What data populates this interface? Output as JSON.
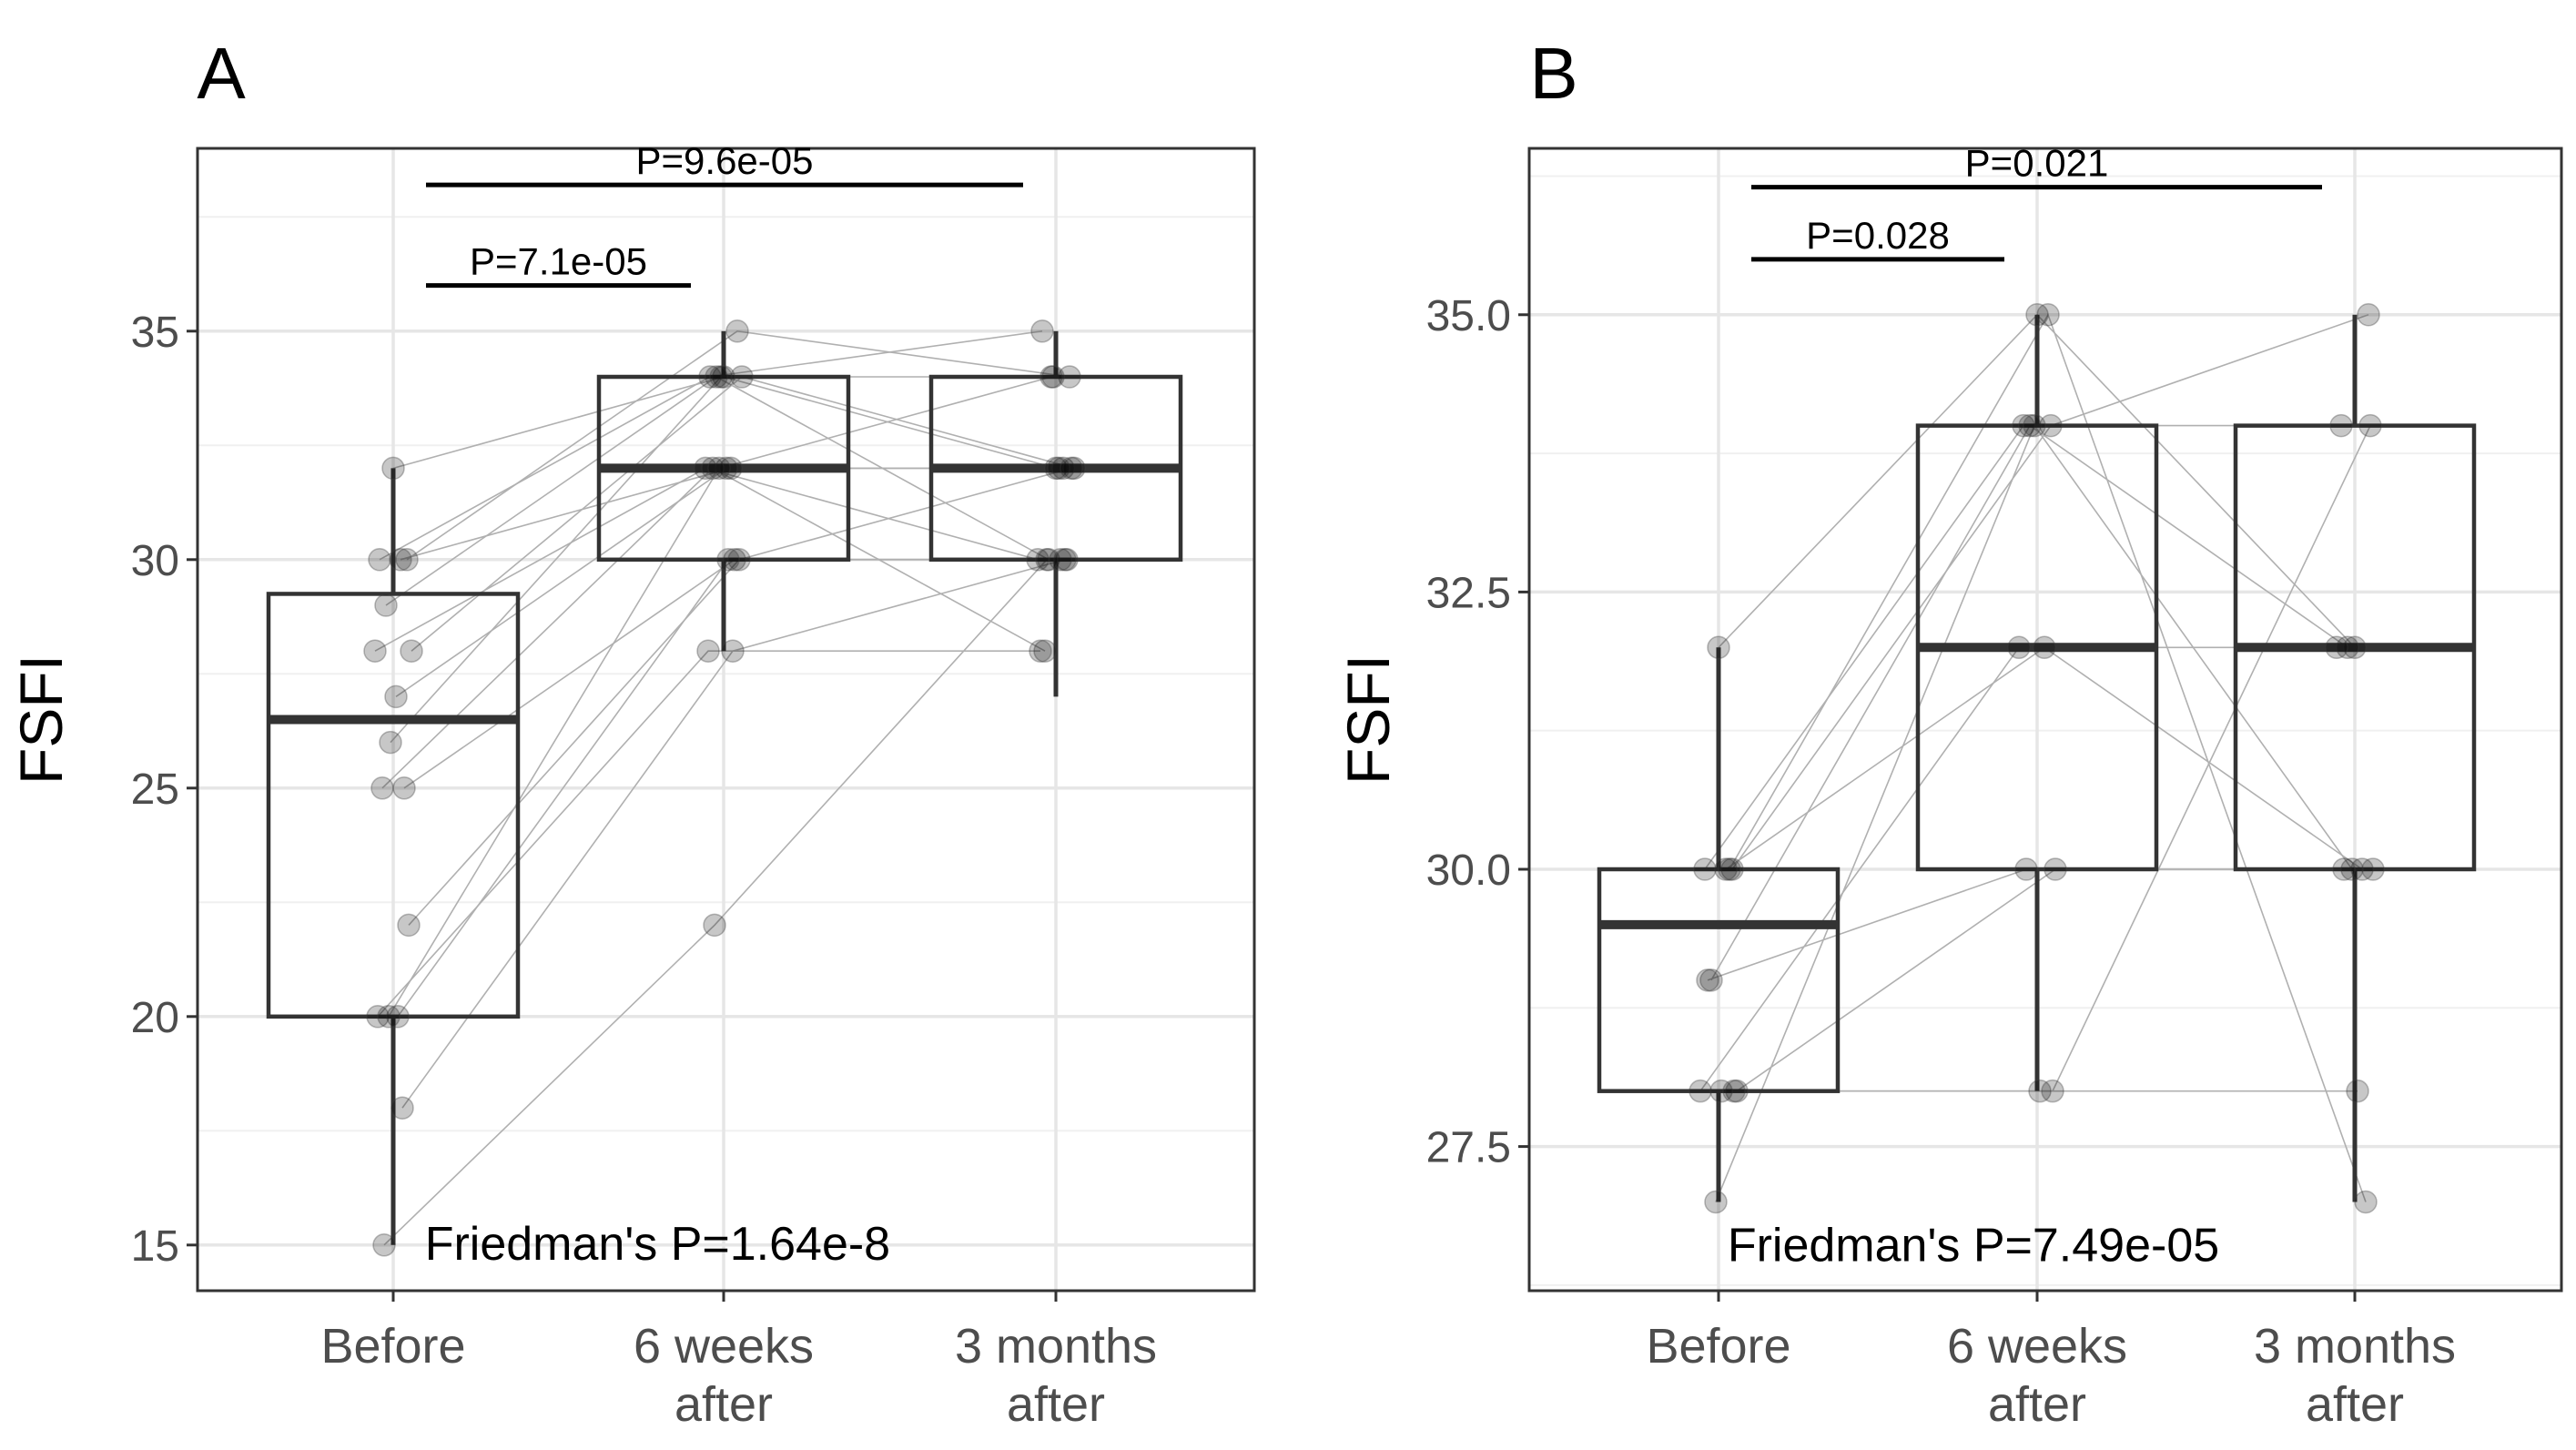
{
  "chart_data": [
    {
      "type": "boxplot",
      "panel_label": "A",
      "ylabel": "FSFI",
      "categories": [
        "Before",
        "6 weeks after",
        "3 months after"
      ],
      "category_lines": [
        [
          "Before"
        ],
        [
          "6 weeks",
          "after"
        ],
        [
          "3 months",
          "after"
        ]
      ],
      "ylim": [
        14,
        39
      ],
      "yticks": [
        15,
        20,
        25,
        30,
        35
      ],
      "ytick_labels": [
        "15",
        "20",
        "25",
        "30",
        "35"
      ],
      "grid": true,
      "boxes": [
        {
          "q1": 20,
          "median": 26.5,
          "q3": 29.25,
          "whisker_low": 15,
          "whisker_high": 32
        },
        {
          "q1": 30,
          "median": 32,
          "q3": 34,
          "whisker_low": 28,
          "whisker_high": 35
        },
        {
          "q1": 30,
          "median": 32,
          "q3": 34,
          "whisker_low": 27,
          "whisker_high": 35
        }
      ],
      "subjects": [
        [
          32,
          34,
          32
        ],
        [
          30,
          35,
          34
        ],
        [
          30,
          34,
          35
        ],
        [
          30,
          32,
          32
        ],
        [
          29,
          34,
          30
        ],
        [
          28,
          34,
          32
        ],
        [
          28,
          32,
          30
        ],
        [
          27,
          32,
          32
        ],
        [
          26,
          34,
          34
        ],
        [
          25,
          30,
          30
        ],
        [
          25,
          32,
          28
        ],
        [
          22,
          30,
          32
        ],
        [
          20,
          28,
          28
        ],
        [
          20,
          30,
          30
        ],
        [
          20,
          32,
          34
        ],
        [
          18,
          28,
          30
        ],
        [
          15,
          22,
          30
        ]
      ],
      "brackets": [
        {
          "from": 0,
          "to": 2,
          "y": 38.2,
          "label": "P=9.6e-05"
        },
        {
          "from": 0,
          "to": 1,
          "y": 36.0,
          "label": "P=7.1e-05"
        }
      ],
      "annotation": "Friedman's  P=1.64e-8",
      "annotation_y": 15
    },
    {
      "type": "boxplot",
      "panel_label": "B",
      "ylabel": "FSFI",
      "categories": [
        "Before",
        "6 weeks after",
        "3 months after"
      ],
      "category_lines": [
        [
          "Before"
        ],
        [
          "6 weeks",
          "after"
        ],
        [
          "3 months",
          "after"
        ]
      ],
      "ylim": [
        26.2,
        36.5
      ],
      "yticks": [
        27.5,
        30.0,
        32.5,
        35.0
      ],
      "ytick_labels": [
        "27.5",
        "30.0",
        "32.5",
        "35.0"
      ],
      "grid": true,
      "boxes": [
        {
          "q1": 28,
          "median": 29.5,
          "q3": 30,
          "whisker_low": 27,
          "whisker_high": 32
        },
        {
          "q1": 30,
          "median": 32,
          "q3": 34,
          "whisker_low": 28,
          "whisker_high": 35
        },
        {
          "q1": 30,
          "median": 32,
          "q3": 34,
          "whisker_low": 27,
          "whisker_high": 35
        }
      ],
      "subjects": [
        [
          32,
          35,
          32
        ],
        [
          30,
          34,
          35
        ],
        [
          30,
          34,
          34
        ],
        [
          30,
          32,
          30
        ],
        [
          29,
          34,
          32
        ],
        [
          28,
          30,
          30
        ],
        [
          28,
          32,
          32
        ],
        [
          28,
          28,
          28
        ],
        [
          27,
          34,
          30
        ],
        [
          30,
          35,
          27
        ],
        [
          29,
          30,
          30
        ],
        [
          28,
          28,
          34
        ]
      ],
      "brackets": [
        {
          "from": 0,
          "to": 2,
          "y": 36.15,
          "label": "P=0.021"
        },
        {
          "from": 0,
          "to": 1,
          "y": 35.5,
          "label": "P=0.028"
        }
      ],
      "annotation": "Friedman's  P=7.49e-05",
      "annotation_y": 26.6
    }
  ]
}
